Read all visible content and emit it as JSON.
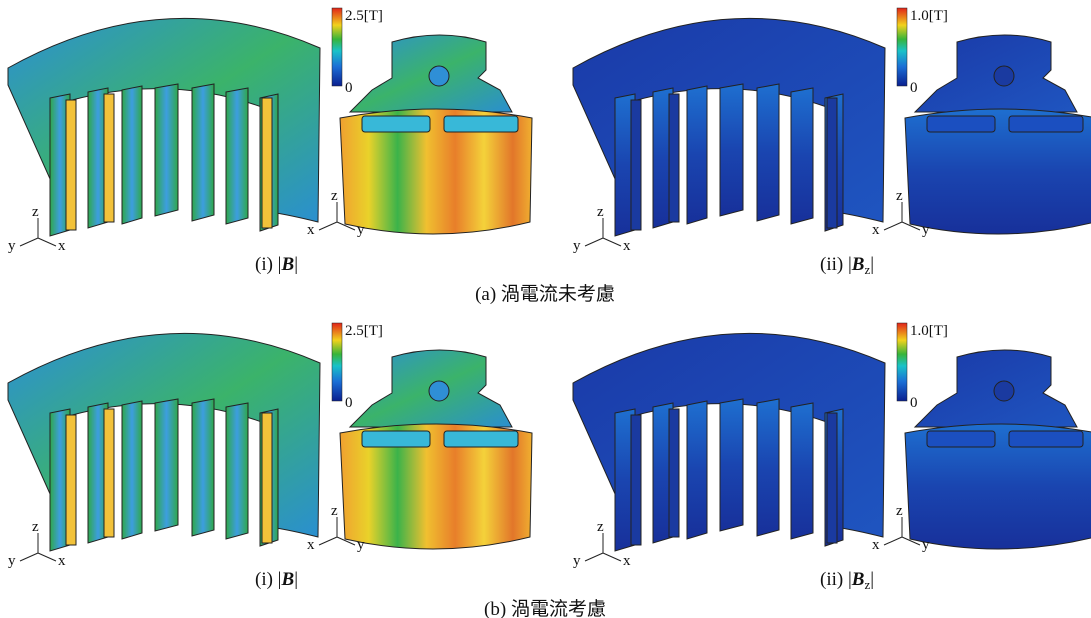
{
  "axis_names": {
    "x": "x",
    "y": "y",
    "z": "z"
  },
  "rows": [
    {
      "caption": "(a) 渦電流未考慮",
      "subfigures": [
        {
          "prefix": "(i) |",
          "symbol": "B",
          "suffix": "|",
          "max_label": "2.5[T]",
          "min_label": "0"
        },
        {
          "prefix": "(ii) |",
          "symbol": "B",
          "subscript": "z",
          "suffix": "|",
          "max_label": "1.0[T]",
          "min_label": "0"
        }
      ]
    },
    {
      "caption": "(b) 渦電流考慮",
      "subfigures": [
        {
          "prefix": "(i) |",
          "symbol": "B",
          "suffix": "|",
          "max_label": "2.5[T]",
          "min_label": "0"
        },
        {
          "prefix": "(ii) |",
          "symbol": "B",
          "subscript": "z",
          "suffix": "|",
          "max_label": "1.0[T]",
          "min_label": "0"
        }
      ]
    }
  ]
}
